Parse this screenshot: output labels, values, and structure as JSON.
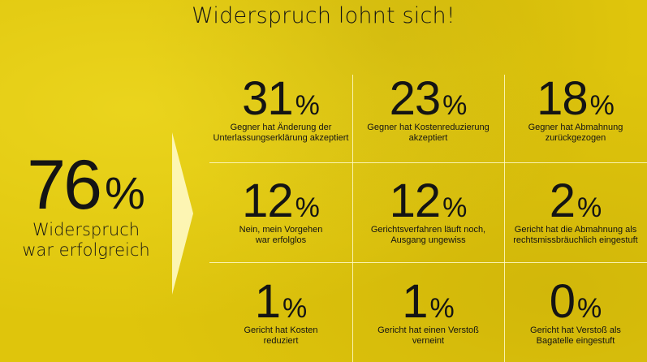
{
  "title": "Widerspruch lohnt sich!",
  "highlight": {
    "value": "76",
    "unit": "%",
    "label_line1": "Widerspruch",
    "label_line2": "war erfolgreich"
  },
  "stats": [
    {
      "value": "31",
      "unit": "%",
      "line1": "Gegner hat Änderung der",
      "line2": "Unterlassungserklärung akzeptiert"
    },
    {
      "value": "23",
      "unit": "%",
      "line1": "Gegner hat Kostenreduzierung",
      "line2": "akzeptiert"
    },
    {
      "value": "18",
      "unit": "%",
      "line1": "Gegner hat Abmahnung",
      "line2": "zurückgezogen"
    },
    {
      "value": "12",
      "unit": "%",
      "line1": "Nein, mein Vorgehen",
      "line2": "war erfolglos"
    },
    {
      "value": "12",
      "unit": "%",
      "line1": "Gerichtsverfahren läuft noch,",
      "line2": "Ausgang ungewiss"
    },
    {
      "value": "2",
      "unit": "%",
      "line1": "Gericht hat die Abmahnung als",
      "line2": "rechtsmissbräuchlich eingestuft"
    },
    {
      "value": "1",
      "unit": "%",
      "line1": "Gericht hat Kosten",
      "line2": "reduziert"
    },
    {
      "value": "1",
      "unit": "%",
      "line1": "Gericht hat einen Verstoß",
      "line2": "verneint"
    },
    {
      "value": "0",
      "unit": "%",
      "line1": "Gericht hat Verstoß als",
      "line2": "Bagatelle eingestuft"
    }
  ],
  "colors": {
    "background": "#dfc50c",
    "text": "#141414",
    "divider": "#fffac8"
  }
}
